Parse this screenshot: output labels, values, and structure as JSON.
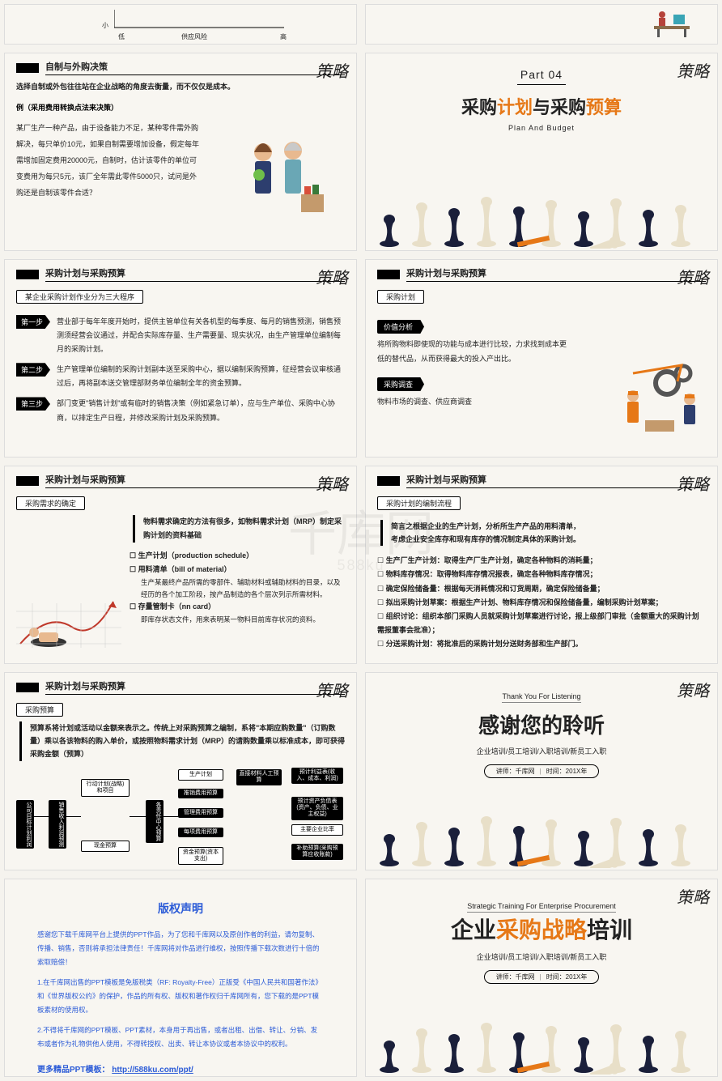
{
  "watermark": {
    "main": "千库网",
    "sub": "588ku"
  },
  "cornerMark": "策略",
  "colors": {
    "orange": "#e67817",
    "blue": "#2b5bd7",
    "bgSlide": "#f8f6f1",
    "chessDark": "#1a1f3a",
    "chessLight": "#e8dfc8"
  },
  "slide_axis": {
    "ylabel": "小",
    "xlow": "低",
    "xmid": "供应风险",
    "xhigh": "高"
  },
  "slide_desk": {},
  "slide_make_buy": {
    "title": "自制与外购决策",
    "intro": "选择自制或外包往往站在企业战略的角度去衡量，而不仅仅是成本。",
    "example_label": "例（采用费用转换点法来决策）",
    "body": "某厂生产一种产品，由于设备能力不足，某种零件需外购解决，每只单价10元，如果自制需要增加设备，假定每年需增加固定费用20000元，自制时，估计该零件的单位可变费用为每只5元，该厂全年需此零件5000只，试问是外购还是自制该零件合适？"
  },
  "slide_part4": {
    "part": "Part  04",
    "title_pre": "采购",
    "title_hl1": "计划",
    "title_mid": "与采购",
    "title_hl2": "预算",
    "sub": "Plan And Budget"
  },
  "slide_plan_steps": {
    "title": "采购计划与采购预算",
    "sub": "某企业采购计划作业分为三大程序",
    "steps": [
      {
        "tag": "第一步",
        "text": "营业部于每年年度开始时，提供主管单位有关各机型的每季度、每月的销售预测，销售预测须经营会议通过，并配合实际库存量、生产需要量、现实状况，由生产管理单位编制每月的采购计划。"
      },
      {
        "tag": "第二步",
        "text": "生产管理单位编制的采购计划副本送至采购中心，据以编制采购预算，征经营会议审核通过后，再将副本送交管理部财务单位编制全年的资金预算。"
      },
      {
        "tag": "第三步",
        "text": "部门变更\"销售计划\"或有临时的销售决策（例如紧急订单），应与生产单位、采购中心协商，以排定生产日程，并修改采购计划及采购预算。"
      }
    ]
  },
  "slide_plan_right": {
    "title": "采购计划与采购预算",
    "sub": "采购计划",
    "blocks": [
      {
        "label": "价值分析",
        "text": "将所购物料即使现的功能与成本进行比较，力求找到成本更低的替代品，从而获得最大的投入产出比。"
      },
      {
        "label": "采购调查",
        "text": "物料市场的调查、供应商调查"
      }
    ]
  },
  "slide_demand": {
    "title": "采购计划与采购预算",
    "sub": "采购需求的确定",
    "intro": "物料需求确定的方法有很多，如物料需求计划（MRP）制定采购计划的资料基础",
    "items": [
      {
        "label": "生产计划（production schedule）",
        "sub": ""
      },
      {
        "label": "用料清单（bill of material）",
        "sub": "生产某最终产品所需的零部件、辅助材料或辅助材料的目录，以及经历的各个加工阶段，按产品制造的各个层次列示所需材料。"
      },
      {
        "label": "存量管制卡（nn card）",
        "sub": "即库存状态文件，用来表明某一物料目前库存状况的资料。"
      }
    ]
  },
  "slide_process": {
    "title": "采购计划与采购预算",
    "sub": "采购计划的编制流程",
    "intro1": "简言之根据企业的生产计划，分析所生产产品的用料清单，",
    "intro2": "考虑企业安全库存和现有库存的情况制定具体的采购计划。",
    "bullets": [
      "生产厂生产计划：取得生产厂生产计划，确定各种物料的消耗量；",
      "物料库存情况：取得物料库存情况报表，确定各种物料库存情况；",
      "确定保险储备量：根据每天消耗情况和订货周期，确定保险储备量；",
      "拟出采购计划草案：根据生产计划、物料库存情况和保险储备量，编制采购计划草案；",
      "组织讨论：组织本部门采购人员就采购计划草案进行讨论，报上级部门审批（金额重大的采购计划需报董事会批准）；",
      "分送采购计划：将批准后的采购计划分送财务部和生产部门。"
    ]
  },
  "slide_budget": {
    "title": "采购计划与采购预算",
    "sub": "采购预算",
    "intro": "预算系将计划或活动以金额来表示之。传统上对采购预算之编制，系将\"本期应购数量\"（订购数量）乘以各该物料的购入单价，或按照物料需求计划（MRP）的请购数量乘以标准成本，即可获得采购金额（预算）",
    "flow": {
      "b1": "公司目标计划利润",
      "b2": "销售收入利润预测",
      "b3": "行动计划(战略)和项目",
      "b4": "各责任中心预算",
      "b5": "现金预算",
      "b6": "生产计划",
      "b7": "推销费用预算",
      "b8": "管理费用预算",
      "b9": "资金预算(资本支出)",
      "b10": "直接材料人工预算",
      "b11": "每项费用预算",
      "b12": "预计利益表(收入、成本、利润)",
      "b13": "预计资产负债表(资产、负债、业主权益)",
      "b14": "主要企业比率",
      "b15": "补助预算(采购预算应收账款)"
    }
  },
  "slide_thanks": {
    "top": "Thank You For Listening",
    "big": "感谢您的聆听",
    "sub": "企业培训/员工培训/入职培训/新员工入职",
    "meta_l": "讲师：千库网",
    "meta_r": "时间：201X年"
  },
  "slide_copyright": {
    "title": "版权声明",
    "p1": "感谢您下载千库网平台上提供的PPT作品，为了您和千库网以及原创作者的利益，请勿复制、传播、销售，否则将承担法律责任！千库网将对作品进行维权，按照传播下载次数进行十倍的索取赔偿！",
    "p2": "1.在千库网出售的PPT模板是免版税类（RF: Royalty-Free）正版受《中国人民共和国著作法》和《世界版权公约》的保护，作品的所有权、版权和著作权归千库网所有，您下载的是PPT模板素材的使用权。",
    "p3": "2.不得将千库网的PPT模板、PPT素材，本身用于再出售，或者出租、出借、转让、分销、发布或者作为礼物供他人使用，不得转授权、出卖、转让本协议或者本协议中的权利。",
    "link_label": "更多精品PPT模板：",
    "link": "http://588ku.com/ppt/"
  },
  "slide_final": {
    "top": "Strategic Training For Enterprise Procurement",
    "pre": "企业",
    "hl": "采购战略",
    "post": "培训",
    "sub": "企业培训/员工培训/入职培训/新员工入职",
    "meta_l": "讲师：千库网",
    "meta_r": "时间：201X年"
  }
}
